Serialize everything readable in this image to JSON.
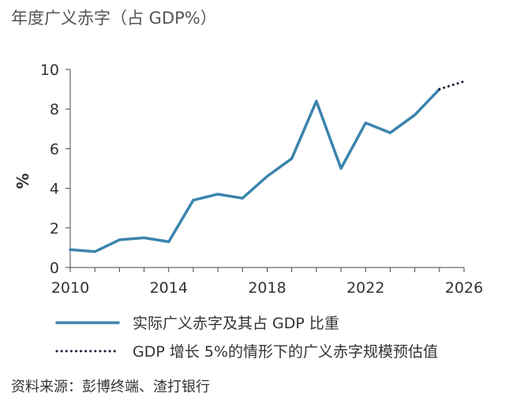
{
  "chart_data": {
    "type": "line",
    "title": "年度广义赤字（占 GDP%）",
    "xlabel": "",
    "ylabel": "%",
    "xlim": [
      2010,
      2026
    ],
    "ylim": [
      0,
      10
    ],
    "x_ticks": [
      2010,
      2014,
      2018,
      2022,
      2026
    ],
    "y_ticks": [
      0,
      2,
      4,
      6,
      8,
      10
    ],
    "series": [
      {
        "name": "实际广义赤字及其占 GDP 比重",
        "style": "solid",
        "color": "#3b84ad",
        "x": [
          2010,
          2011,
          2012,
          2013,
          2014,
          2015,
          2016,
          2017,
          2018,
          2019,
          2020,
          2021,
          2022,
          2023,
          2024,
          2025
        ],
        "values": [
          0.9,
          0.8,
          1.4,
          1.5,
          1.3,
          3.4,
          3.7,
          3.5,
          4.6,
          5.5,
          8.4,
          5.0,
          7.3,
          6.8,
          7.7,
          9.0
        ]
      },
      {
        "name": "GDP 增长 5%的情形下的广义赤字规模预估值",
        "style": "dotted",
        "color": "#1a1f3a",
        "x": [
          2025,
          2026
        ],
        "values": [
          9.0,
          9.4
        ]
      }
    ],
    "legend": "bottom",
    "source": "资料来源：彭博终端、渣打银行"
  }
}
